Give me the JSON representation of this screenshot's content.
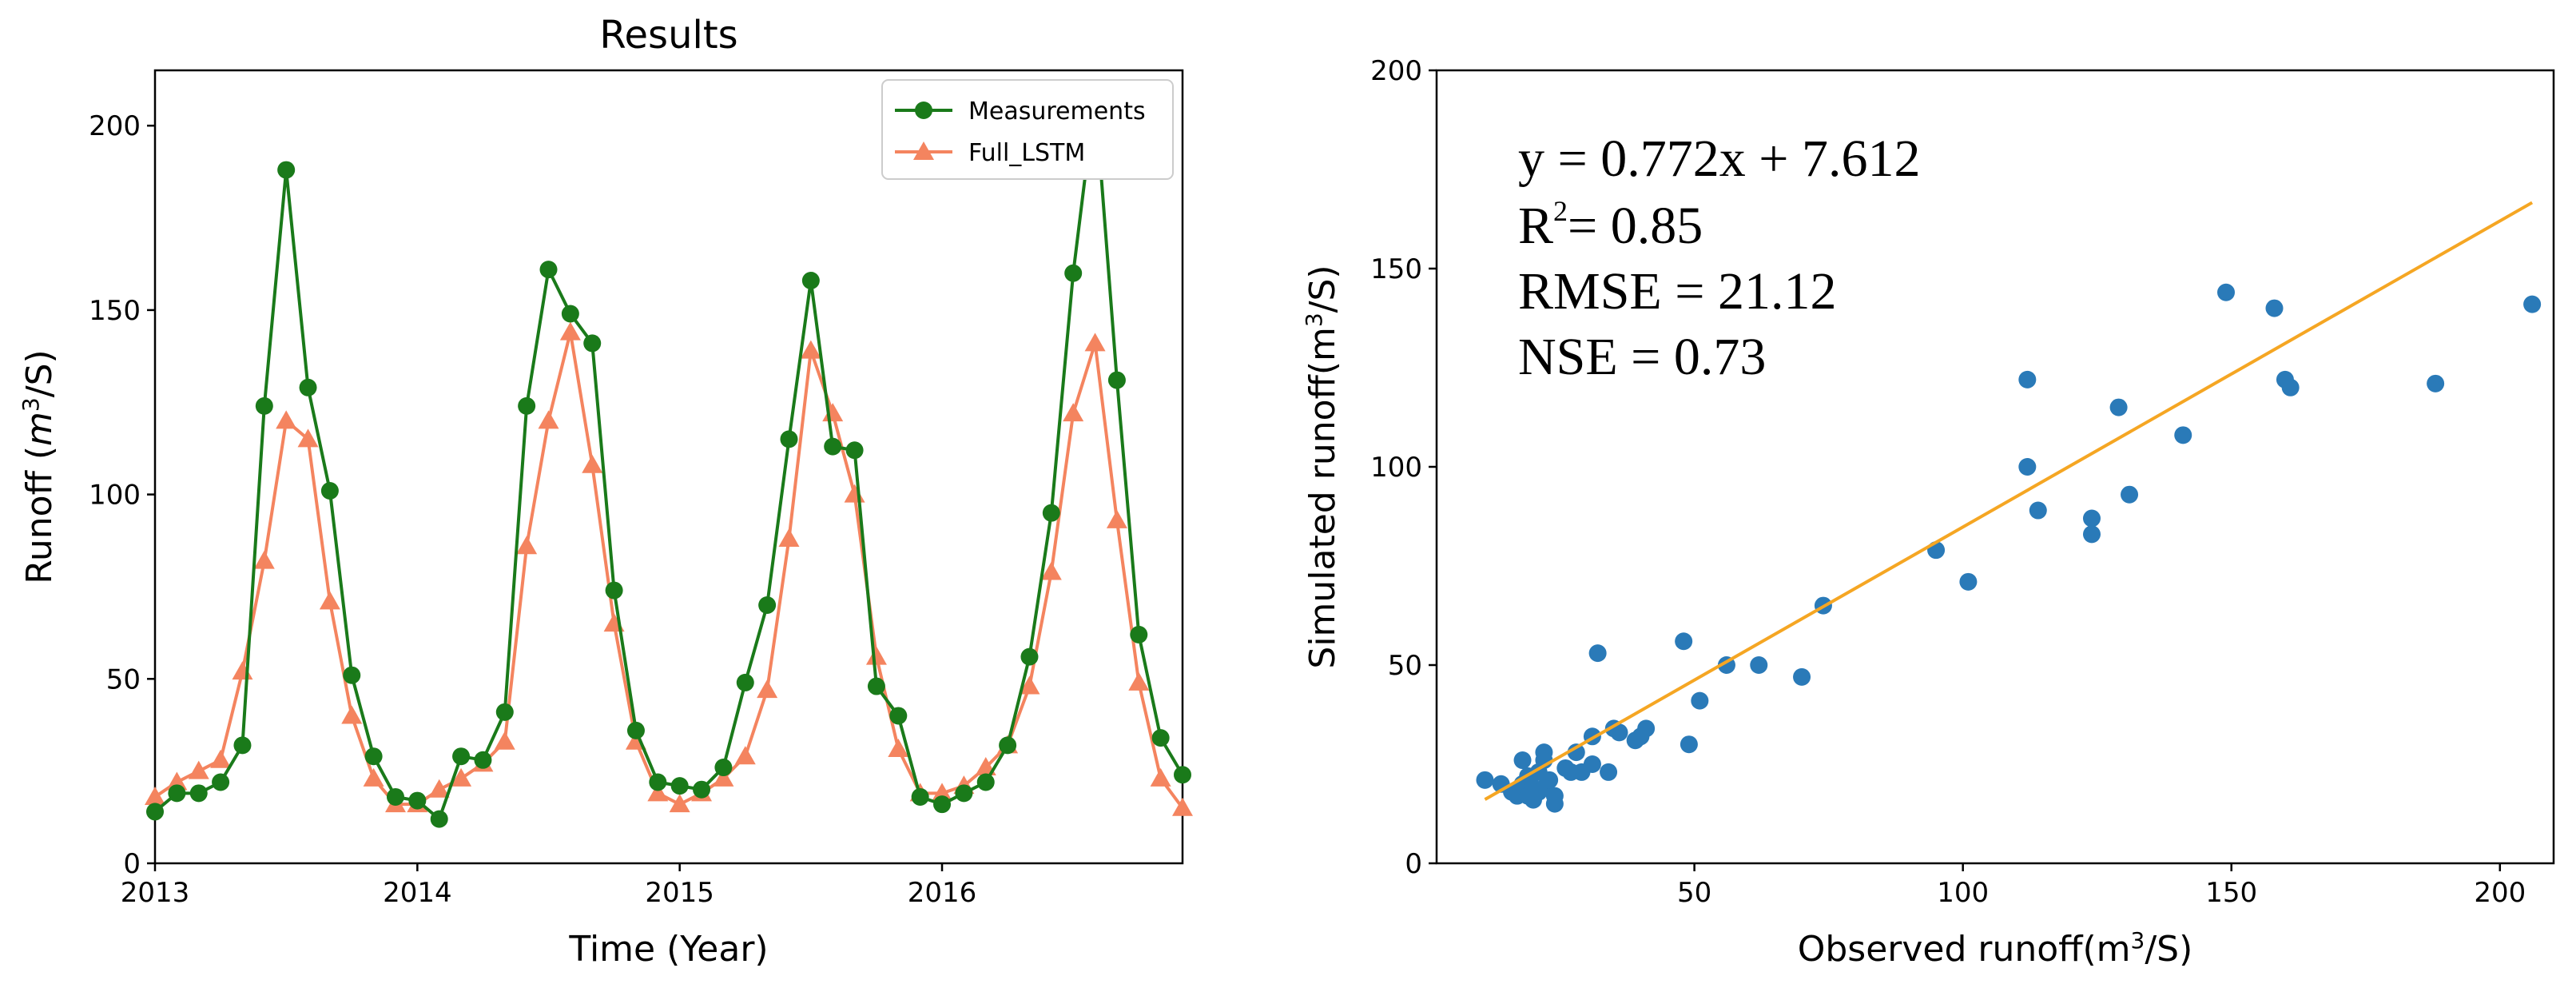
{
  "chart_data": [
    {
      "type": "line",
      "title": "Results",
      "xlabel": "Time (Year)",
      "ylabel_prefix": "Runoff (",
      "ylabel_var": "m",
      "ylabel_exp": "3",
      "ylabel_suffix": "/S)",
      "xlim": [
        "2013-01",
        "2016-12"
      ],
      "ylim": [
        0,
        215
      ],
      "xticks": [
        "2013",
        "2014",
        "2015",
        "2016"
      ],
      "yticks": [
        0,
        50,
        100,
        150,
        200
      ],
      "grid": false,
      "legend_position": "top-right",
      "x": [
        "2013-01",
        "2013-02",
        "2013-03",
        "2013-04",
        "2013-05",
        "2013-06",
        "2013-07",
        "2013-08",
        "2013-09",
        "2013-10",
        "2013-11",
        "2013-12",
        "2014-01",
        "2014-02",
        "2014-03",
        "2014-04",
        "2014-05",
        "2014-06",
        "2014-07",
        "2014-08",
        "2014-09",
        "2014-10",
        "2014-11",
        "2014-12",
        "2015-01",
        "2015-02",
        "2015-03",
        "2015-04",
        "2015-05",
        "2015-06",
        "2015-07",
        "2015-08",
        "2015-09",
        "2015-10",
        "2015-11",
        "2015-12",
        "2016-01",
        "2016-02",
        "2016-03",
        "2016-04",
        "2016-05",
        "2016-06",
        "2016-07",
        "2016-08",
        "2016-09",
        "2016-10",
        "2016-11",
        "2016-12"
      ],
      "series": [
        {
          "name": "Measurements",
          "color": "#1a7a1a",
          "marker": "circle",
          "values": [
            14,
            19,
            19,
            22,
            32,
            124,
            188,
            129,
            101,
            51,
            29,
            18,
            17,
            12,
            29,
            28,
            41,
            124,
            161,
            149,
            141,
            74,
            36,
            22,
            21,
            20,
            26,
            49,
            70,
            115,
            158,
            113,
            112,
            48,
            40,
            18,
            16,
            19,
            22,
            32,
            56,
            95,
            160,
            208,
            131,
            62,
            34,
            24
          ]
        },
        {
          "name": "Full_LSTM",
          "color": "#f4845f",
          "marker": "triangle",
          "values": [
            18,
            22,
            25,
            28,
            52,
            82,
            120,
            115,
            71,
            40,
            23,
            16,
            16,
            20,
            23,
            27,
            33,
            86,
            120,
            144,
            108,
            65,
            33,
            19,
            16,
            19,
            23,
            29,
            47,
            88,
            139,
            122,
            100,
            56,
            31,
            19,
            19,
            21,
            26,
            32,
            48,
            79,
            122,
            141,
            93,
            49,
            23,
            15
          ]
        }
      ]
    },
    {
      "type": "scatter",
      "xlabel_prefix": "Observed runoff(m",
      "xlabel_exp": "3",
      "xlabel_suffix": "/S)",
      "ylabel_prefix": "Simulated runoff(m",
      "ylabel_exp": "3",
      "ylabel_suffix": "/S)",
      "xlim": [
        2,
        210
      ],
      "ylim": [
        0,
        200
      ],
      "xticks": [
        50,
        100,
        150,
        200
      ],
      "yticks": [
        0,
        50,
        100,
        150,
        200
      ],
      "grid": false,
      "point_color": "#2a7ab8",
      "fit_color": "#f5a623",
      "fit": {
        "slope": 0.772,
        "intercept": 7.612,
        "x_range": [
          11,
          206
        ]
      },
      "annotations": {
        "equation": "y = 0.772x + 7.612",
        "r2_base": "R",
        "r2_exp": "2",
        "r2_value": "= 0.85",
        "rmse": "RMSE = 21.12",
        "nse": "NSE = 0.73"
      },
      "points": [
        [
          11,
          21
        ],
        [
          14,
          20
        ],
        [
          16,
          18
        ],
        [
          17,
          17
        ],
        [
          18,
          26
        ],
        [
          18,
          20
        ],
        [
          19,
          17
        ],
        [
          19,
          22
        ],
        [
          20,
          16
        ],
        [
          20,
          19
        ],
        [
          21,
          18
        ],
        [
          21,
          23
        ],
        [
          22,
          28
        ],
        [
          22,
          26
        ],
        [
          22,
          19
        ],
        [
          23,
          21
        ],
        [
          24,
          17
        ],
        [
          24,
          15
        ],
        [
          26,
          24
        ],
        [
          27,
          23
        ],
        [
          28,
          28
        ],
        [
          29,
          23
        ],
        [
          31,
          25
        ],
        [
          31,
          32
        ],
        [
          32,
          53
        ],
        [
          34,
          23
        ],
        [
          35,
          34
        ],
        [
          36,
          33
        ],
        [
          39,
          31
        ],
        [
          40,
          32
        ],
        [
          41,
          34
        ],
        [
          48,
          56
        ],
        [
          49,
          30
        ],
        [
          51,
          41
        ],
        [
          56,
          50
        ],
        [
          62,
          50
        ],
        [
          70,
          47
        ],
        [
          74,
          65
        ],
        [
          95,
          79
        ],
        [
          101,
          71
        ],
        [
          112,
          100
        ],
        [
          112,
          122
        ],
        [
          114,
          89
        ],
        [
          124,
          87
        ],
        [
          124,
          83
        ],
        [
          129,
          115
        ],
        [
          131,
          93
        ],
        [
          141,
          108
        ],
        [
          149,
          144
        ],
        [
          158,
          140
        ],
        [
          160,
          122
        ],
        [
          161,
          120
        ],
        [
          188,
          121
        ],
        [
          206,
          141
        ]
      ]
    }
  ]
}
